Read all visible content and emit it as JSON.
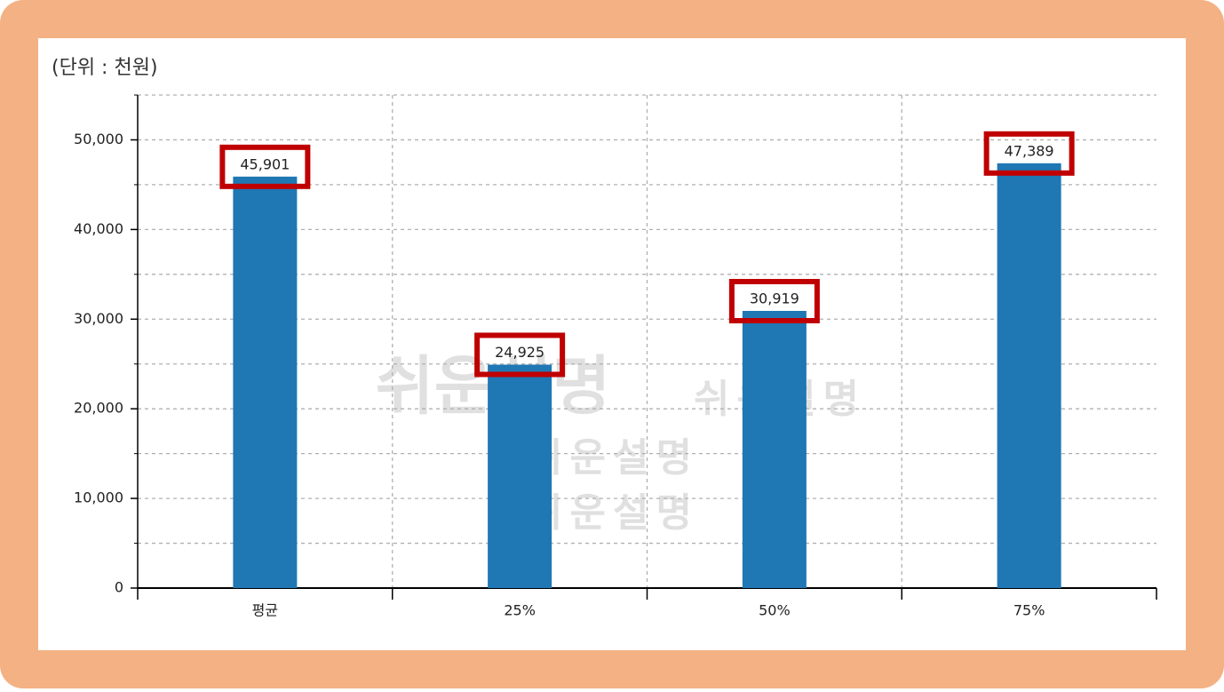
{
  "chart_data": {
    "type": "bar",
    "unit_label": "(단위 : 천원)",
    "categories": [
      "평균",
      "25%",
      "50%",
      "75%"
    ],
    "values": [
      45901,
      24925,
      30919,
      47389
    ],
    "value_labels": [
      "45,901",
      "24,925",
      "30,919",
      "47,389"
    ],
    "color": "#1f77b4",
    "ylim": [
      0,
      55000
    ],
    "yticks": [
      0,
      {
        "value": 10000,
        "label": "10,000"
      },
      {
        "value": 20000,
        "label": "20,000"
      },
      {
        "value": 30000,
        "label": "30,000"
      },
      {
        "value": 40000,
        "label": "40,000"
      },
      {
        "value": 50000,
        "label": "50,000"
      }
    ],
    "yminorticks": [
      5000,
      15000,
      25000,
      35000,
      45000,
      55000
    ],
    "grid": true,
    "watermark": [
      "쉬운설명",
      "쉬운설명",
      "쉬운설명",
      "쉬운설명"
    ]
  }
}
